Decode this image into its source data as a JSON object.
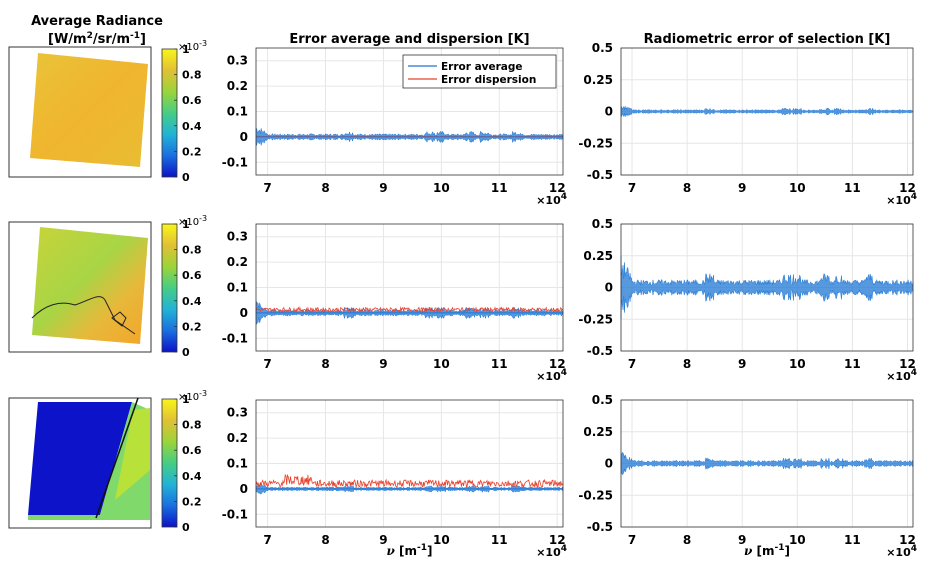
{
  "figure": {
    "left_title": "Average Radiance",
    "left_units_parts": [
      "[W/m",
      "2",
      "/sr/m",
      "-1",
      "]"
    ],
    "colorbar": {
      "exponent_base": "×10",
      "exponent_power": "-3",
      "ticks": [
        "0",
        "0.2",
        "0.4",
        "0.6",
        "0.8",
        "1"
      ],
      "colors": [
        "#0d13c8",
        "#1a6fe0",
        "#22b3d6",
        "#46cd85",
        "#9bd43a",
        "#e1c035",
        "#f9f51a"
      ]
    },
    "x_multiplier": {
      "base": "×10",
      "power": "4"
    },
    "x_label_nu": "ν",
    "x_label_unit_parts": [
      "[m",
      "-1",
      "]"
    ],
    "colors": {
      "error_average": "#1f77d4",
      "error_dispersion": "#e8412c",
      "selection_green": "#7fb53a",
      "selection_blue": "#2e8fd6",
      "grid": "#e6e6e6"
    }
  },
  "chart_data": [
    {
      "type": "line",
      "title": "Error average and dispersion [K]",
      "row": 1,
      "x": {
        "min": 6.8,
        "max": 12.1,
        "ticks": [
          "7",
          "8",
          "9",
          "10",
          "11",
          "12"
        ]
      },
      "ylim": [
        -0.15,
        0.35
      ],
      "yticks": [
        "-0.1",
        "0",
        "0.1",
        "0.2",
        "0.3"
      ],
      "legend": {
        "position": "top-right",
        "entries": [
          "Error average",
          "Error dispersion"
        ]
      },
      "series": [
        {
          "name": "Error average",
          "band_amplitude": 0.01,
          "dispersion_level": 0.002
        }
      ]
    },
    {
      "type": "line",
      "title": "Radiometric error of selection [K]",
      "row": 1,
      "x": {
        "min": 6.8,
        "max": 12.1,
        "ticks": [
          "7",
          "8",
          "9",
          "10",
          "11",
          "12"
        ]
      },
      "ylim": [
        -0.5,
        0.5
      ],
      "yticks": [
        "-0.5",
        "-0.25",
        "0",
        "0.25",
        "0.5"
      ],
      "series": [
        {
          "name": "Radiometric error",
          "band_amplitude": 0.012
        }
      ]
    },
    {
      "type": "line",
      "title": "",
      "row": 2,
      "x": {
        "min": 6.8,
        "max": 12.1,
        "ticks": [
          "7",
          "8",
          "9",
          "10",
          "11",
          "12"
        ]
      },
      "ylim": [
        -0.15,
        0.35
      ],
      "yticks": [
        "-0.1",
        "0",
        "0.1",
        "0.2",
        "0.3"
      ],
      "series": [
        {
          "name": "Error average",
          "band_amplitude": 0.01,
          "dispersion_level": 0.015
        }
      ]
    },
    {
      "type": "line",
      "title": "",
      "row": 2,
      "x": {
        "min": 6.8,
        "max": 12.1,
        "ticks": [
          "7",
          "8",
          "9",
          "10",
          "11",
          "12"
        ]
      },
      "ylim": [
        -0.5,
        0.5
      ],
      "yticks": [
        "-0.5",
        "-0.25",
        "0",
        "0.25",
        "0.5"
      ],
      "series": [
        {
          "name": "Radiometric error",
          "band_amplitude": 0.05
        }
      ]
    },
    {
      "type": "line",
      "title": "",
      "row": 3,
      "x": {
        "min": 6.8,
        "max": 12.1,
        "ticks": [
          "7",
          "8",
          "9",
          "10",
          "11",
          "12"
        ]
      },
      "ylim": [
        -0.15,
        0.35
      ],
      "yticks": [
        "-0.1",
        "0",
        "0.1",
        "0.2",
        "0.3"
      ],
      "series": [
        {
          "name": "Error average",
          "band_amplitude": 0.006,
          "dispersion_level": 0.025
        }
      ]
    },
    {
      "type": "line",
      "title": "",
      "row": 3,
      "x": {
        "min": 6.8,
        "max": 12.1,
        "ticks": [
          "7",
          "8",
          "9",
          "10",
          "11",
          "12"
        ]
      },
      "ylim": [
        -0.5,
        0.5
      ],
      "yticks": [
        "-0.5",
        "-0.25",
        "0",
        "0.25",
        "0.5"
      ],
      "series": [
        {
          "name": "Radiometric error",
          "band_amplitude": 0.02
        }
      ]
    }
  ]
}
